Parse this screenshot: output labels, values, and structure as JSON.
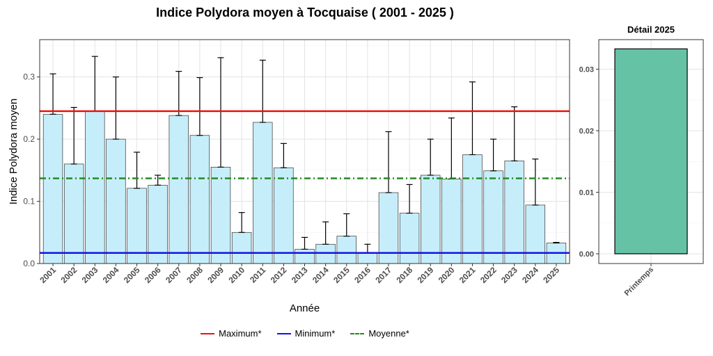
{
  "chart_data": [
    {
      "type": "bar",
      "title": "Indice Polydora moyen à Tocquaise ( 2001 - 2025 )",
      "xlabel": "Année",
      "ylabel": "Indice Polydora moyen",
      "ylim": [
        0,
        0.36
      ],
      "yticks": [
        "0.0",
        "0.1",
        "0.2",
        "0.3"
      ],
      "grid": true,
      "bar_color": "#c6eefa",
      "categories": [
        "2001",
        "2002",
        "2003",
        "2004",
        "2005",
        "2006",
        "2007",
        "2008",
        "2009",
        "2010",
        "2011",
        "2012",
        "2013",
        "2014",
        "2015",
        "2016",
        "2017",
        "2018",
        "2019",
        "2020",
        "2021",
        "2022",
        "2023",
        "2024",
        "2025"
      ],
      "values": [
        0.24,
        0.16,
        0.245,
        0.2,
        0.121,
        0.126,
        0.238,
        0.206,
        0.155,
        0.05,
        0.227,
        0.154,
        0.023,
        0.031,
        0.044,
        0.017,
        0.114,
        0.081,
        0.142,
        0.136,
        0.175,
        0.149,
        0.165,
        0.094,
        0.033
      ],
      "error_upper": [
        0.305,
        0.251,
        0.333,
        0.3,
        0.179,
        0.142,
        0.309,
        0.299,
        0.331,
        0.082,
        0.327,
        0.193,
        0.042,
        0.067,
        0.08,
        0.031,
        0.212,
        0.127,
        0.2,
        0.234,
        0.292,
        0.2,
        0.252,
        0.168,
        0.034
      ],
      "reference_lines": [
        {
          "name": "Maximum*",
          "value": 0.245,
          "color": "#ee1111",
          "style": "solid"
        },
        {
          "name": "Minimum*",
          "value": 0.017,
          "color": "#1111ee",
          "style": "solid"
        },
        {
          "name": "Moyenne*",
          "value": 0.137,
          "color": "#228b22",
          "style": "dashdot"
        }
      ],
      "legend_position": "bottom"
    },
    {
      "type": "bar",
      "title": "Détail 2025",
      "categories": [
        "Printemps"
      ],
      "values": [
        0.0333
      ],
      "ylim": [
        0,
        0.0348
      ],
      "yticks": [
        "0.00",
        "0.01",
        "0.02",
        "0.03"
      ],
      "bar_color": "#66c2a5",
      "grid": true
    }
  ]
}
